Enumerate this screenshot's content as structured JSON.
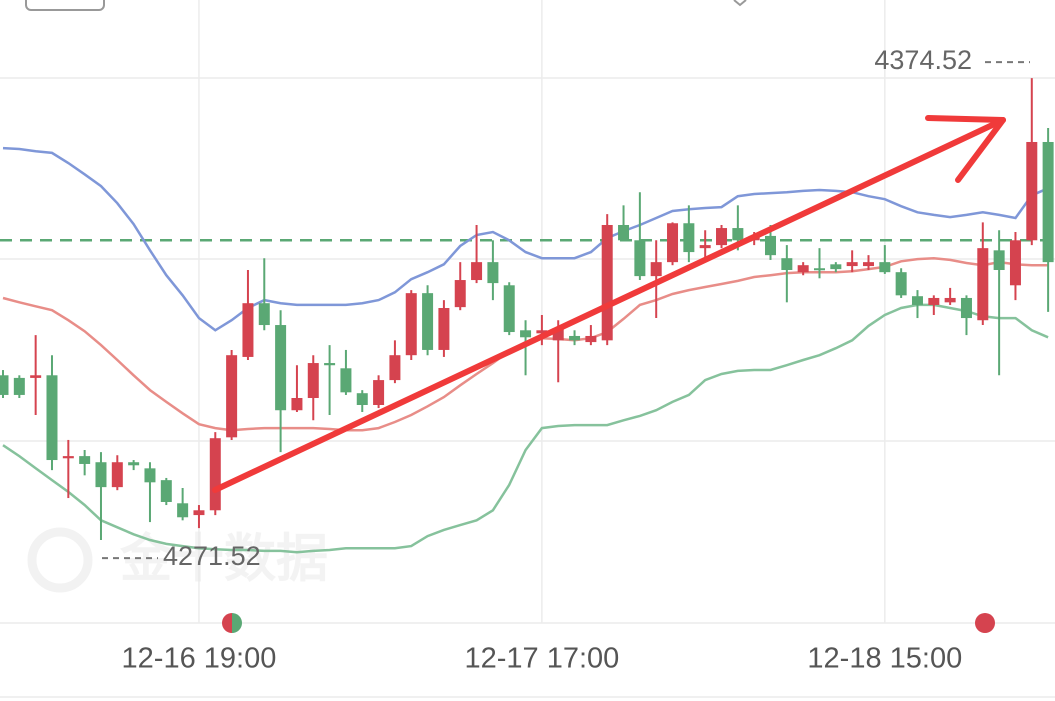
{
  "chart_data": {
    "type": "candlestick",
    "watermark": "金十数据",
    "categories": [
      null,
      null,
      null,
      null,
      null,
      null,
      null,
      null,
      null,
      null,
      null,
      null,
      "12-16 19:00",
      null,
      null,
      null,
      null,
      null,
      null,
      null,
      null,
      null,
      null,
      null,
      null,
      null,
      null,
      null,
      null,
      null,
      null,
      null,
      null,
      "12-17 17:00",
      null,
      null,
      null,
      null,
      null,
      null,
      null,
      null,
      null,
      null,
      null,
      null,
      null,
      null,
      null,
      null,
      null,
      null,
      null,
      null,
      "12-18 15:00",
      null,
      null,
      null,
      null,
      null,
      null,
      null,
      null,
      null,
      null
    ],
    "ohlc": [
      [
        4306.5,
        4307.7,
        4301.3,
        4302.0
      ],
      [
        4305.9,
        4306.5,
        4301.3,
        4302.0
      ],
      [
        4305.9,
        4315.7,
        4297.4,
        4306.5
      ],
      [
        4306.5,
        4311.1,
        4284.8,
        4287.1
      ],
      [
        4287.5,
        4291.7,
        4278.4,
        4288.0
      ],
      [
        4288.0,
        4289.4,
        4283.6,
        4286.2
      ],
      [
        4286.6,
        4288.9,
        4268.8,
        4280.9
      ],
      [
        4280.9,
        4288.2,
        4280.2,
        4286.6
      ],
      [
        4286.6,
        4287.1,
        4284.8,
        4285.9
      ],
      [
        4285.2,
        4286.6,
        4272.9,
        4282.0
      ],
      [
        4282.5,
        4283.0,
        4276.8,
        4277.5
      ],
      [
        4277.2,
        4280.7,
        4273.3,
        4274.0
      ],
      [
        4274.5,
        4276.8,
        4271.52,
        4275.6
      ],
      [
        4275.6,
        4293.5,
        4274.5,
        4292.1
      ],
      [
        4292.3,
        4312.3,
        4291.7,
        4311.1
      ],
      [
        4310.7,
        4330.6,
        4310.0,
        4323.0
      ],
      [
        4323.0,
        4333.3,
        4316.8,
        4318.0
      ],
      [
        4318.0,
        4321.4,
        4288.9,
        4298.5
      ],
      [
        4298.5,
        4308.8,
        4298.1,
        4301.3
      ],
      [
        4301.3,
        4311.1,
        4296.2,
        4309.3
      ],
      [
        4309.3,
        4313.4,
        4297.4,
        4308.8
      ],
      [
        4308.1,
        4312.3,
        4302.0,
        4302.6
      ],
      [
        4302.4,
        4303.1,
        4298.1,
        4299.7
      ],
      [
        4299.7,
        4306.5,
        4299.0,
        4305.4
      ],
      [
        4305.4,
        4314.5,
        4304.7,
        4311.1
      ],
      [
        4311.1,
        4326.0,
        4310.0,
        4325.3
      ],
      [
        4325.3,
        4327.1,
        4311.1,
        4312.3
      ],
      [
        4312.3,
        4323.7,
        4310.7,
        4321.9
      ],
      [
        4322.1,
        4332.4,
        4321.4,
        4328.3
      ],
      [
        4328.3,
        4340.9,
        4327.6,
        4332.4
      ],
      [
        4332.4,
        4337.4,
        4323.7,
        4327.6
      ],
      [
        4327.1,
        4327.8,
        4315.7,
        4316.4
      ],
      [
        4316.8,
        4319.1,
        4306.5,
        4315.2
      ],
      [
        4316.1,
        4320.3,
        4313.4,
        4316.8
      ],
      [
        4314.5,
        4319.1,
        4304.9,
        4317.3
      ],
      [
        4315.5,
        4316.8,
        4313.4,
        4314.5
      ],
      [
        4314.1,
        4318.0,
        4313.4,
        4315.5
      ],
      [
        4314.5,
        4343.4,
        4313.4,
        4340.9
      ],
      [
        4340.9,
        4345.4,
        4337.4,
        4337.4
      ],
      [
        4337.4,
        4348.4,
        4328.3,
        4329.2
      ],
      [
        4329.2,
        4337.4,
        4319.6,
        4332.4
      ],
      [
        4332.4,
        4341.5,
        4331.7,
        4341.3
      ],
      [
        4341.3,
        4345.4,
        4332.4,
        4334.7
      ],
      [
        4335.6,
        4339.7,
        4332.9,
        4336.3
      ],
      [
        4336.3,
        4340.9,
        4335.6,
        4340.2
      ],
      [
        4340.2,
        4345.4,
        4335.1,
        4337.4
      ],
      [
        4337.4,
        4339.3,
        4336.3,
        4338.4
      ],
      [
        4338.4,
        4340.9,
        4332.9,
        4334.0
      ],
      [
        4333.3,
        4336.3,
        4323.2,
        4330.6
      ],
      [
        4330.1,
        4332.4,
        4329.4,
        4331.7
      ],
      [
        4331.0,
        4335.6,
        4328.7,
        4330.6
      ],
      [
        4331.9,
        4332.4,
        4330.1,
        4330.8
      ],
      [
        4331.5,
        4335.1,
        4330.1,
        4332.4
      ],
      [
        4331.5,
        4334.0,
        4330.6,
        4332.4
      ],
      [
        4332.4,
        4336.3,
        4329.7,
        4330.1
      ],
      [
        4330.1,
        4331.0,
        4324.2,
        4324.8
      ],
      [
        4324.6,
        4326.0,
        4319.6,
        4322.6
      ],
      [
        4322.6,
        4324.8,
        4320.3,
        4324.2
      ],
      [
        4323.2,
        4326.5,
        4322.6,
        4324.2
      ],
      [
        4324.2,
        4324.8,
        4315.7,
        4319.6
      ],
      [
        4319.1,
        4341.5,
        4318.0,
        4335.6
      ],
      [
        4335.1,
        4339.7,
        4306.5,
        4330.6
      ],
      [
        4327.1,
        4339.3,
        4323.7,
        4337.4
      ],
      [
        4337.4,
        4374.52,
        4336.3,
        4359.9
      ],
      [
        4359.9,
        4363.1,
        4321.0,
        4332.4
      ]
    ],
    "up_color": "#d5434f",
    "down_color": "#5aa874",
    "overlays": [
      {
        "color": "#7f97d8",
        "values": [
          4358.5,
          4358.3,
          4357.8,
          4357.4,
          4355.1,
          4352.5,
          4349.8,
          4345.9,
          4341.1,
          4335.1,
          4329.4,
          4324.8,
          4319.6,
          4316.8,
          4319.1,
          4321.9,
          4323.7,
          4323.0,
          4322.6,
          4322.6,
          4322.6,
          4322.6,
          4323.0,
          4323.7,
          4325.5,
          4328.5,
          4330.1,
          4331.9,
          4336.1,
          4338.6,
          4339.3,
          4337.4,
          4334.7,
          4333.3,
          4333.3,
          4333.3,
          4334.7,
          4337.9,
          4339.5,
          4340.9,
          4342.5,
          4344.1,
          4344.5,
          4344.8,
          4345.0,
          4347.5,
          4348.0,
          4348.2,
          4348.4,
          4348.7,
          4348.9,
          4348.7,
          4348.4,
          4347.5,
          4346.8,
          4345.2,
          4343.8,
          4343.2,
          4342.7,
          4343.2,
          4343.8,
          4343.2,
          4342.5,
          4347.7,
          4349.3
        ]
      },
      {
        "color": "#e88d88",
        "values": [
          4324.2,
          4323.2,
          4322.3,
          4321.4,
          4319.1,
          4316.6,
          4313.4,
          4310.0,
          4306.5,
          4303.1,
          4300.4,
          4297.8,
          4295.3,
          4294.4,
          4293.9,
          4294.2,
          4294.4,
          4294.4,
          4294.4,
          4294.4,
          4294.2,
          4293.9,
          4293.9,
          4294.4,
          4295.8,
          4297.4,
          4299.4,
          4301.5,
          4304.2,
          4306.8,
          4309.3,
          4312.0,
          4314.1,
          4315.0,
          4314.8,
          4314.5,
          4315.0,
          4316.4,
          4319.4,
          4322.6,
          4323.7,
          4325.1,
          4326.0,
          4326.7,
          4327.4,
          4328.1,
          4329.0,
          4329.4,
          4329.9,
          4330.1,
          4330.1,
          4330.1,
          4330.3,
          4330.8,
          4331.3,
          4332.6,
          4333.1,
          4333.3,
          4332.9,
          4332.2,
          4331.7,
          4332.4,
          4331.9,
          4331.7,
          4331.7
        ]
      },
      {
        "color": "#86c29c",
        "values": [
          4290.5,
          4288.0,
          4285.2,
          4282.5,
          4279.8,
          4276.8,
          4273.3,
          4271.7,
          4270.1,
          4268.8,
          4267.9,
          4267.4,
          4266.9,
          4266.7,
          4266.5,
          4266.5,
          4266.3,
          4266.3,
          4266.0,
          4266.3,
          4266.5,
          4266.9,
          4266.9,
          4266.9,
          4266.9,
          4267.4,
          4269.7,
          4271.1,
          4272.2,
          4273.3,
          4275.6,
          4281.4,
          4289.4,
          4294.4,
          4294.9,
          4295.1,
          4295.1,
          4295.1,
          4296.2,
          4297.2,
          4298.5,
          4300.4,
          4302.0,
          4305.4,
          4306.8,
          4307.5,
          4307.7,
          4307.7,
          4308.8,
          4310.0,
          4311.1,
          4312.7,
          4314.5,
          4317.8,
          4320.3,
          4321.9,
          4322.6,
          4322.6,
          4321.9,
          4321.2,
          4320.0,
          4319.6,
          4319.6,
          4316.8,
          4315.2
        ]
      }
    ],
    "reference_line": 4337.4,
    "reference_color": "#5aa874",
    "max_label": 4374.52,
    "min_label": 4271.52,
    "ylim": [
      4249.8,
      4392.4
    ]
  }
}
